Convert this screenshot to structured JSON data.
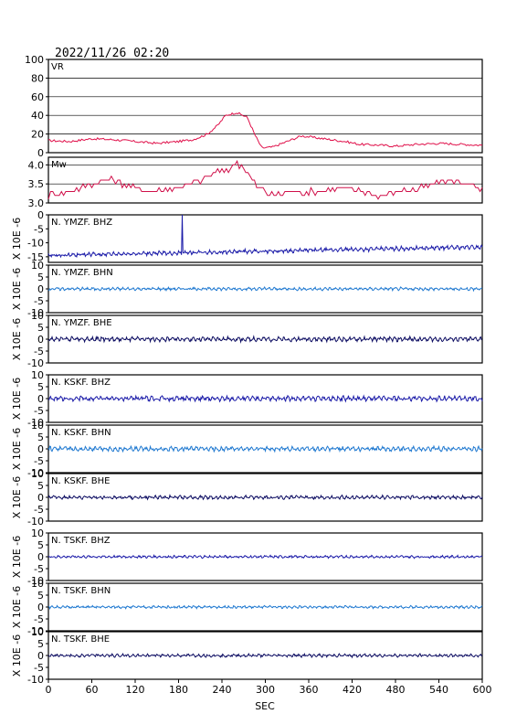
{
  "header": {
    "datetime": "2022/11/26 02:20"
  },
  "xaxis": {
    "label": "SEC",
    "ticks": [
      "0",
      "60",
      "120",
      "180",
      "240",
      "300",
      "360",
      "420",
      "480",
      "540",
      "600"
    ],
    "range": [
      0,
      600
    ]
  },
  "unit_label": "X 10E -6",
  "colors": {
    "vr": "#e0104a",
    "mw": "#d0104a",
    "dark_blue": "#1a1aa8",
    "light_blue": "#1e78d0",
    "navy": "#0a0a60",
    "grid": "#000000"
  },
  "chart_data": [
    {
      "type": "line",
      "title": "VR",
      "yticks": [
        "100",
        "80",
        "60",
        "40",
        "20",
        "0"
      ],
      "ylim": [
        0,
        100
      ],
      "grid": true,
      "points": [
        [
          0,
          13
        ],
        [
          30,
          12
        ],
        [
          60,
          15
        ],
        [
          90,
          14
        ],
        [
          120,
          12
        ],
        [
          150,
          10
        ],
        [
          180,
          12
        ],
        [
          200,
          14
        ],
        [
          220,
          20
        ],
        [
          235,
          30
        ],
        [
          245,
          40
        ],
        [
          260,
          43
        ],
        [
          275,
          38
        ],
        [
          285,
          20
        ],
        [
          295,
          5
        ],
        [
          310,
          6
        ],
        [
          330,
          12
        ],
        [
          350,
          18
        ],
        [
          370,
          16
        ],
        [
          390,
          14
        ],
        [
          410,
          12
        ],
        [
          430,
          9
        ],
        [
          460,
          8
        ],
        [
          480,
          7
        ],
        [
          510,
          9
        ],
        [
          540,
          10
        ],
        [
          570,
          9
        ],
        [
          600,
          8
        ]
      ]
    },
    {
      "type": "line",
      "title": "Mw",
      "yticks": [
        "4.0",
        "3.5",
        "3.0"
      ],
      "ylim": [
        3.0,
        4.2
      ],
      "grid": true,
      "points": [
        [
          0,
          3.2
        ],
        [
          30,
          3.3
        ],
        [
          60,
          3.5
        ],
        [
          90,
          3.6
        ],
        [
          120,
          3.4
        ],
        [
          150,
          3.3
        ],
        [
          180,
          3.4
        ],
        [
          210,
          3.6
        ],
        [
          230,
          3.8
        ],
        [
          250,
          3.9
        ],
        [
          260,
          4.1
        ],
        [
          275,
          3.8
        ],
        [
          290,
          3.4
        ],
        [
          310,
          3.2
        ],
        [
          340,
          3.3
        ],
        [
          370,
          3.3
        ],
        [
          400,
          3.4
        ],
        [
          430,
          3.3
        ],
        [
          460,
          3.2
        ],
        [
          490,
          3.3
        ],
        [
          520,
          3.4
        ],
        [
          550,
          3.6
        ],
        [
          580,
          3.5
        ],
        [
          600,
          3.3
        ]
      ]
    },
    {
      "type": "line",
      "title": "N. YMZF. BHZ",
      "yticks": [
        "0",
        "-5",
        "-10",
        "-15"
      ],
      "ylim": [
        -17,
        0
      ],
      "grid": false,
      "baseline_start": -14.5,
      "baseline_end": -11.5,
      "amplitude": 0.7,
      "spike": {
        "x": 185,
        "y": 0
      }
    },
    {
      "type": "line",
      "title": "N. YMZF. BHN",
      "yticks": [
        "10",
        "5",
        "0",
        "-5",
        "-10"
      ],
      "ylim": [
        -10,
        10
      ],
      "grid": false,
      "baseline_start": 0,
      "baseline_end": 0,
      "amplitude": 0.6
    },
    {
      "type": "line",
      "title": "N. YMZF. BHE",
      "yticks": [
        "10",
        "5",
        "0",
        "-5",
        "-10"
      ],
      "ylim": [
        -10,
        10
      ],
      "grid": false,
      "baseline_start": 0,
      "baseline_end": 0,
      "amplitude": 0.9
    },
    {
      "type": "line",
      "title": "N. KSKF. BHZ",
      "yticks": [
        "10",
        "5",
        "0",
        "-5",
        "-10"
      ],
      "ylim": [
        -10,
        10
      ],
      "grid": false,
      "baseline_start": 0,
      "baseline_end": 0,
      "amplitude": 1.0
    },
    {
      "type": "line",
      "title": "N. KSKF. BHN",
      "yticks": [
        "10",
        "5",
        "0",
        "-5",
        "-10"
      ],
      "ylim": [
        -10,
        10
      ],
      "grid": false,
      "baseline_start": 0,
      "baseline_end": 0,
      "amplitude": 0.9
    },
    {
      "type": "line",
      "title": "N. KSKF. BHE",
      "yticks": [
        "10",
        "5",
        "0",
        "-5",
        "-10"
      ],
      "ylim": [
        -10,
        10
      ],
      "grid": false,
      "baseline_start": 0,
      "baseline_end": 0,
      "amplitude": 0.7
    },
    {
      "type": "line",
      "title": "N. TSKF. BHZ",
      "yticks": [
        "10",
        "5",
        "0",
        "-5",
        "-10"
      ],
      "ylim": [
        -10,
        10
      ],
      "grid": false,
      "baseline_start": 0,
      "baseline_end": 0,
      "amplitude": 0.5
    },
    {
      "type": "line",
      "title": "N. TSKF. BHN",
      "yticks": [
        "10",
        "5",
        "0",
        "-5",
        "-10"
      ],
      "ylim": [
        -10,
        10
      ],
      "grid": false,
      "baseline_start": 0,
      "baseline_end": 0,
      "amplitude": 0.5
    },
    {
      "type": "line",
      "title": "N. TSKF. BHE",
      "yticks": [
        "10",
        "5",
        "0",
        "-5",
        "-10"
      ],
      "ylim": [
        -10,
        10
      ],
      "grid": false,
      "baseline_start": 0,
      "baseline_end": 0,
      "amplitude": 0.6
    }
  ]
}
